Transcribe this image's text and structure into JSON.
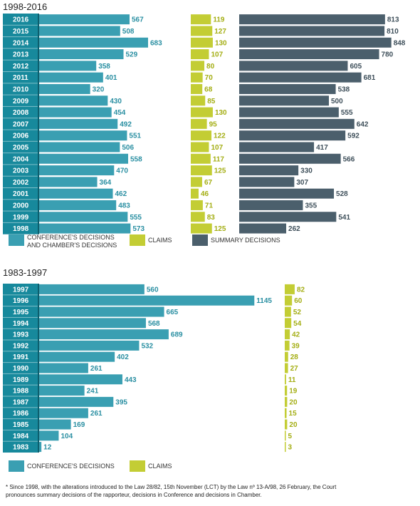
{
  "chart_data": [
    {
      "type": "bar",
      "orientation": "horizontal",
      "title": "1998-2016",
      "categories": [
        "2016",
        "2015",
        "2014",
        "2013",
        "2012",
        "2011",
        "2010",
        "2009",
        "2008",
        "2007",
        "2006",
        "2005",
        "2004",
        "2003",
        "2002",
        "2001",
        "2000",
        "1999",
        "1998"
      ],
      "series": [
        {
          "name": "CONFERENCE'S DECISIONS AND CHAMBER'S DECISIONS",
          "color": "#3a9fb2",
          "values": [
            567,
            508,
            683,
            529,
            358,
            401,
            320,
            430,
            454,
            492,
            551,
            506,
            558,
            470,
            364,
            462,
            483,
            555,
            573
          ]
        },
        {
          "name": "CLAIMS",
          "color": "#c3cd34",
          "values": [
            119,
            127,
            130,
            107,
            80,
            70,
            68,
            85,
            130,
            95,
            122,
            107,
            117,
            125,
            67,
            46,
            71,
            83,
            125
          ]
        },
        {
          "name": "SUMMARY DECISIONS",
          "color": "#4b5f6c",
          "values": [
            813,
            810,
            848,
            780,
            605,
            681,
            538,
            500,
            555,
            642,
            592,
            417,
            566,
            330,
            307,
            528,
            355,
            541,
            262
          ]
        }
      ],
      "legend": [
        "CONFERENCE'S DECISIONS",
        "AND CHAMBER'S DECISIONS",
        "CLAIMS",
        "SUMMARY DECISIONS"
      ],
      "legend_position": "bottom"
    },
    {
      "type": "bar",
      "orientation": "horizontal",
      "title": "1983-1997",
      "categories": [
        "1997",
        "1996",
        "1995",
        "1994",
        "1993",
        "1992",
        "1991",
        "1990",
        "1989",
        "1988",
        "1987",
        "1986",
        "1985",
        "1984",
        "1983"
      ],
      "series": [
        {
          "name": "CONFERENCE'S DECISIONS",
          "color": "#3a9fb2",
          "values": [
            560,
            1145,
            665,
            568,
            689,
            532,
            402,
            261,
            443,
            241,
            395,
            261,
            169,
            104,
            12
          ]
        },
        {
          "name": "CLAIMS",
          "color": "#c3cd34",
          "values": [
            82,
            60,
            52,
            54,
            42,
            39,
            28,
            27,
            11,
            19,
            20,
            15,
            20,
            5,
            3
          ]
        }
      ],
      "legend": [
        "CONFERENCE'S DECISIONS",
        "CLAIMS"
      ],
      "legend_position": "bottom"
    }
  ],
  "footnote": {
    "line1": "* Since 1998, with the alterations introduced to the Law 28/82, 15th November (LCT) by the Law nº 13-A/98, 26 February, the Court",
    "line2": "pronounces summary decisions of the rapporteur, decisions in Conference and decisions in Chamber."
  },
  "colors": {
    "year_band": "#17899c",
    "year_divider": "#0d5f6e",
    "decisions": "#3a9fb2",
    "decisions_label": "#2a8fa2",
    "claims": "#c3cd34",
    "claims_label": "#a4ae14",
    "summary": "#4b5f6c",
    "summary_label": "#3e4f5a"
  }
}
